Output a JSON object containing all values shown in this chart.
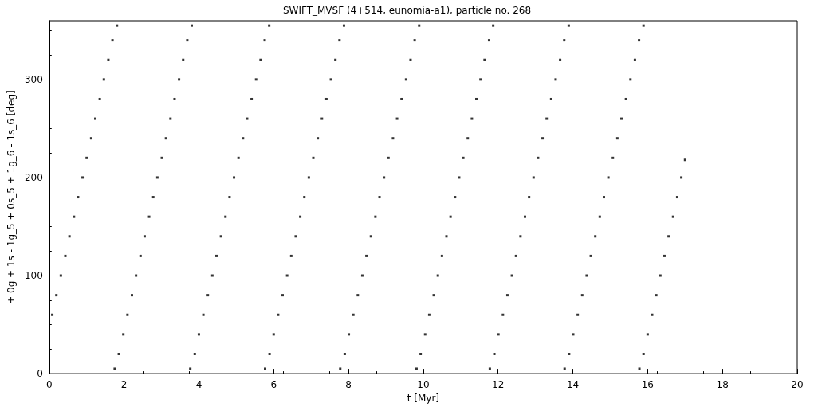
{
  "chart_data": {
    "type": "scatter",
    "title": "SWIFT_MVSF (4+514, eunomia-a1), particle no. 268",
    "xlabel": "t [Myr]",
    "ylabel": "+ 0g + 1s - 1g_5 + 0s_5 + 1g_6 - 1s_6 [deg]",
    "x": [
      0.08,
      0.19,
      0.31,
      0.43,
      0.54,
      0.66,
      0.77,
      0.89,
      1.0,
      1.12,
      1.23,
      1.35,
      1.46,
      1.58,
      1.69,
      1.81,
      1.75,
      1.86,
      1.98,
      2.09,
      2.21,
      2.32,
      2.44,
      2.55,
      2.67,
      2.78,
      2.89,
      3.01,
      3.12,
      3.24,
      3.35,
      3.47,
      3.58,
      3.69,
      3.81,
      3.77,
      3.89,
      4.0,
      4.12,
      4.24,
      4.36,
      4.47,
      4.59,
      4.71,
      4.82,
      4.94,
      5.06,
      5.18,
      5.29,
      5.41,
      5.53,
      5.65,
      5.76,
      5.88,
      5.77,
      5.89,
      6.0,
      6.12,
      6.24,
      6.36,
      6.47,
      6.59,
      6.71,
      6.82,
      6.94,
      7.06,
      7.18,
      7.29,
      7.41,
      7.53,
      7.65,
      7.76,
      7.88,
      7.78,
      7.9,
      8.01,
      8.13,
      8.25,
      8.37,
      8.48,
      8.6,
      8.72,
      8.83,
      8.95,
      9.07,
      9.19,
      9.3,
      9.42,
      9.54,
      9.66,
      9.77,
      9.89,
      9.82,
      9.93,
      10.05,
      10.16,
      10.28,
      10.39,
      10.5,
      10.62,
      10.73,
      10.85,
      10.96,
      11.07,
      11.19,
      11.3,
      11.42,
      11.53,
      11.64,
      11.76,
      11.87,
      11.78,
      11.9,
      12.01,
      12.13,
      12.25,
      12.37,
      12.48,
      12.6,
      12.72,
      12.83,
      12.95,
      13.07,
      13.19,
      13.3,
      13.42,
      13.54,
      13.66,
      13.77,
      13.89,
      13.78,
      13.9,
      14.01,
      14.13,
      14.25,
      14.37,
      14.48,
      14.6,
      14.72,
      14.83,
      14.95,
      15.07,
      15.19,
      15.3,
      15.42,
      15.54,
      15.66,
      15.77,
      15.89,
      15.78,
      15.89,
      16.0,
      16.12,
      16.23,
      16.34,
      16.45,
      16.56,
      16.68,
      16.79,
      16.9,
      17.0
    ],
    "values": [
      60,
      80,
      100,
      120,
      140,
      160,
      180,
      200,
      220,
      240,
      260,
      280,
      300,
      320,
      340,
      355,
      5,
      20,
      40,
      60,
      80,
      100,
      120,
      140,
      160,
      180,
      200,
      220,
      240,
      260,
      280,
      300,
      320,
      340,
      355,
      5,
      20,
      40,
      60,
      80,
      100,
      120,
      140,
      160,
      180,
      200,
      220,
      240,
      260,
      280,
      300,
      320,
      340,
      355,
      5,
      20,
      40,
      60,
      80,
      100,
      120,
      140,
      160,
      180,
      200,
      220,
      240,
      260,
      280,
      300,
      320,
      340,
      355,
      5,
      20,
      40,
      60,
      80,
      100,
      120,
      140,
      160,
      180,
      200,
      220,
      240,
      260,
      280,
      300,
      320,
      340,
      355,
      5,
      20,
      40,
      60,
      80,
      100,
      120,
      140,
      160,
      180,
      200,
      220,
      240,
      260,
      280,
      300,
      320,
      340,
      355,
      5,
      20,
      40,
      60,
      80,
      100,
      120,
      140,
      160,
      180,
      200,
      220,
      240,
      260,
      280,
      300,
      320,
      340,
      355,
      5,
      20,
      40,
      60,
      80,
      100,
      120,
      140,
      160,
      180,
      200,
      220,
      240,
      260,
      280,
      300,
      320,
      340,
      355,
      5,
      20,
      40,
      60,
      80,
      100,
      120,
      140,
      160,
      180,
      200,
      218
    ],
    "color": "#000000",
    "marker": "square",
    "xlim": [
      0,
      20
    ],
    "xticks": [
      0,
      2,
      4,
      6,
      8,
      10,
      12,
      14,
      16,
      18,
      20
    ],
    "ylim": [
      0,
      360
    ],
    "yticks": [
      0,
      100,
      200,
      300
    ]
  }
}
